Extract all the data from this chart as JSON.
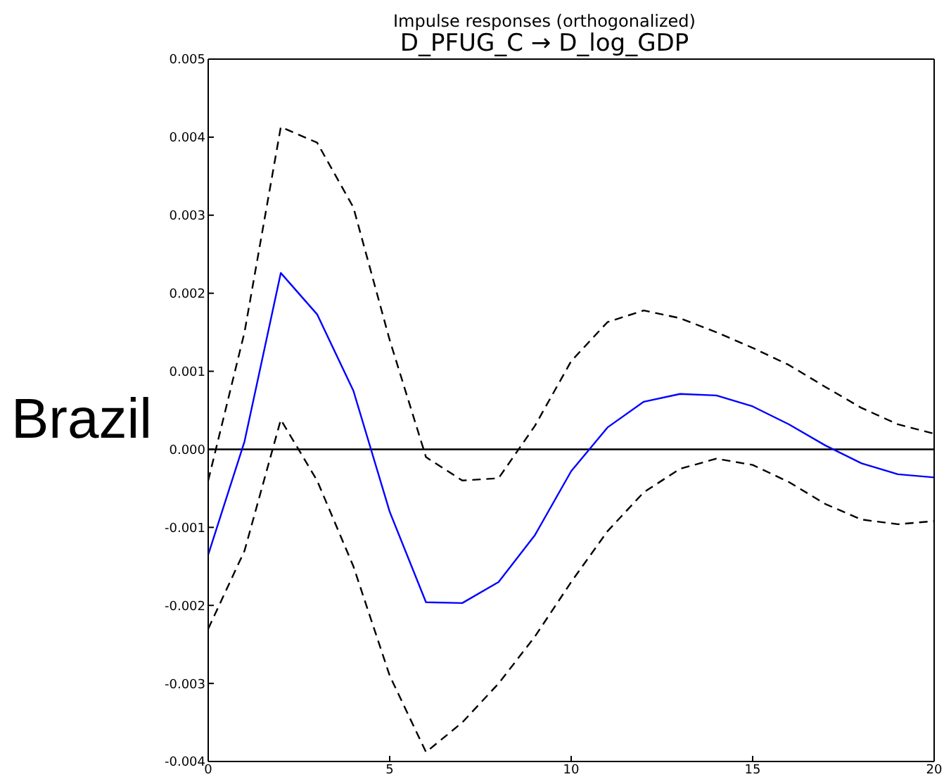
{
  "chart_data": {
    "type": "line",
    "title": "Impulse responses (orthogonalized)",
    "subtitle": "D_PFUG_C → D_log_GDP",
    "annotations": [
      "Brazil"
    ],
    "x": [
      0,
      1,
      2,
      3,
      4,
      5,
      6,
      7,
      8,
      9,
      10,
      11,
      12,
      13,
      14,
      15,
      16,
      17,
      18,
      19,
      20
    ],
    "series": [
      {
        "color": "#0000ff",
        "line_style": "solid",
        "values": [
          -0.00135,
          0.0001,
          0.00226,
          0.00173,
          0.00075,
          -0.0008,
          -0.00196,
          -0.00197,
          -0.0017,
          -0.0011,
          -0.00028,
          0.00028,
          0.00061,
          0.00071,
          0.00069,
          0.00055,
          0.00032,
          5e-05,
          -0.00018,
          -0.00032,
          -0.00036
        ]
      },
      {
        "color": "#000000",
        "line_style": "dashed",
        "values": [
          -0.0004,
          0.0015,
          0.00413,
          0.00393,
          0.0031,
          0.0014,
          -0.0001,
          -0.0004,
          -0.00037,
          0.0003,
          0.00113,
          0.00163,
          0.00178,
          0.00168,
          0.0015,
          0.0013,
          0.00108,
          0.0008,
          0.00053,
          0.00032,
          0.0002
        ]
      },
      {
        "color": "#000000",
        "line_style": "dashed",
        "values": [
          -0.0023,
          -0.0013,
          0.00038,
          -0.0004,
          -0.0015,
          -0.0029,
          -0.00388,
          -0.0035,
          -0.003,
          -0.0024,
          -0.0017,
          -0.00105,
          -0.00055,
          -0.00025,
          -0.00012,
          -0.0002,
          -0.00042,
          -0.0007,
          -0.0009,
          -0.00096,
          -0.00092
        ]
      }
    ],
    "xlim": [
      0,
      20
    ],
    "xticks": [
      0,
      5,
      10,
      15,
      20
    ],
    "ylim": [
      -0.004,
      0.005
    ],
    "yticks": [
      -0.004,
      -0.003,
      -0.002,
      -0.001,
      {
        "value": 0,
        "label": "0.000"
      },
      0.001,
      0.002,
      0.003,
      0.004,
      0.005
    ],
    "ref_lines": [
      {
        "axis": "y",
        "value": 0,
        "color": "#000000"
      }
    ],
    "grid": false,
    "legend": false,
    "marker": "none"
  }
}
